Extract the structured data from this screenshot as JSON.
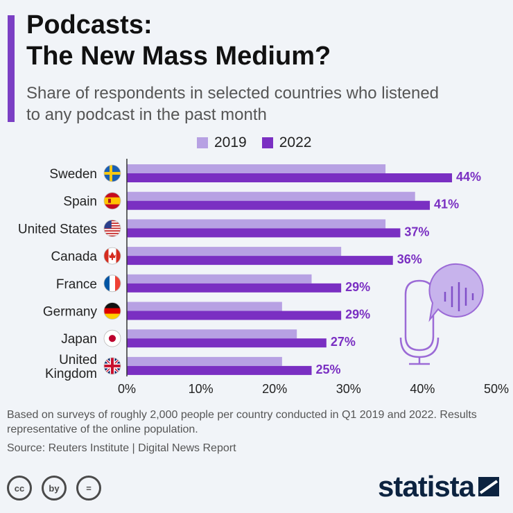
{
  "header": {
    "title_line1": "Podcasts:",
    "title_line2": "The New Mass Medium?",
    "subtitle": "Share of respondents in selected countries who listened to any podcast in the past month"
  },
  "colors": {
    "accent": "#7b3fc4",
    "series_2019": "#b7a1e3",
    "series_2022": "#7a2fc2",
    "label": "#7a2fc2"
  },
  "chart_data": {
    "type": "bar",
    "orientation": "horizontal",
    "categories": [
      "Sweden",
      "Spain",
      "United States",
      "Canada",
      "France",
      "Germany",
      "Japan",
      "United Kingdom"
    ],
    "category_icons": [
      "flag-sweden-icon",
      "flag-spain-icon",
      "flag-usa-icon",
      "flag-canada-icon",
      "flag-france-icon",
      "flag-germany-icon",
      "flag-japan-icon",
      "flag-uk-icon"
    ],
    "series": [
      {
        "name": "2019",
        "values": [
          35,
          39,
          35,
          29,
          25,
          21,
          23,
          21
        ]
      },
      {
        "name": "2022",
        "values": [
          44,
          41,
          37,
          36,
          29,
          29,
          27,
          25
        ]
      }
    ],
    "value_labels": [
      "44%",
      "41%",
      "37%",
      "36%",
      "29%",
      "29%",
      "27%",
      "25%"
    ],
    "xlim": [
      0,
      50
    ],
    "xticks": [
      "0%",
      "10%",
      "20%",
      "30%",
      "40%",
      "50%"
    ],
    "grid": false,
    "legend_position": "top"
  },
  "footer": {
    "note": "Based on surveys of roughly 2,000 people per country conducted in Q1 2019 and 2022. Results representative of the online population.",
    "source": "Source: Reuters Institute | Digital News Report",
    "brand": "statista",
    "license_icons": [
      "cc",
      "by",
      "="
    ]
  }
}
